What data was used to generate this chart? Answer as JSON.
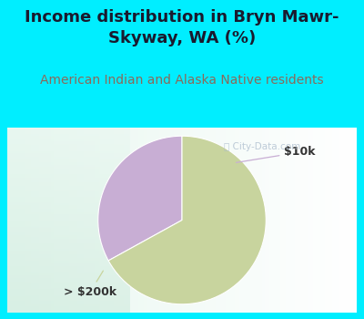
{
  "title": "Income distribution in Bryn Mawr-\nSkyway, WA (%)",
  "subtitle": "American Indian and Alaska Native residents",
  "slices": [
    {
      "label": "$10k",
      "value": 33,
      "color": "#c8aed4"
    },
    {
      "label": "> $200k",
      "value": 67,
      "color": "#c8d49e"
    }
  ],
  "background_color": "#00eeff",
  "chart_bg_top": "#f0faf8",
  "chart_bg_bottom": "#d8ede0",
  "title_color": "#1a1a2e",
  "subtitle_color": "#8b6a5a",
  "title_fontsize": 13,
  "subtitle_fontsize": 10,
  "start_angle": 90,
  "watermark_color": "#aabbcc",
  "annotation_color": "#333333",
  "arrow_color_10k": "#c8aed4",
  "arrow_color_200k": "#c8d49e"
}
